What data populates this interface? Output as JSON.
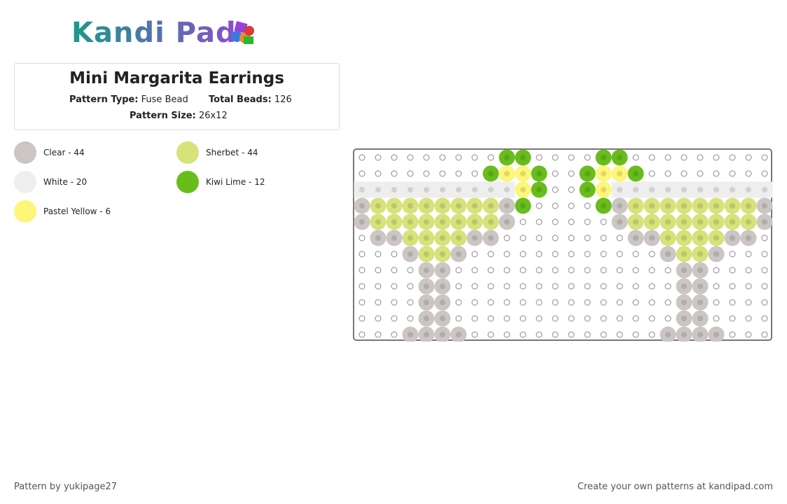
{
  "header": {
    "logo": "Kandi Pad",
    "title": "Mini Margarita Earrings",
    "pattern_type_label": "Pattern Type:",
    "pattern_type": "Fuse Bead",
    "total_beads_label": "Total Beads:",
    "total_beads": "126",
    "pattern_size_label": "Pattern Size:",
    "pattern_size": "26x12"
  },
  "legend": [
    {
      "label": "Clear - 44",
      "color": "#cbc5c3"
    },
    {
      "label": "Sherbet - 44",
      "color": "#d6e27a"
    },
    {
      "label": "White - 20",
      "color": "#eeeeee"
    },
    {
      "label": "Kiwi Lime - 12",
      "color": "#68bd1c"
    },
    {
      "label": "Pastel Yellow - 6",
      "color": "#fdf679"
    }
  ],
  "footer": {
    "credit": "Pattern by yukipage27",
    "link": "Create your own patterns at kandipad.com"
  }
}
